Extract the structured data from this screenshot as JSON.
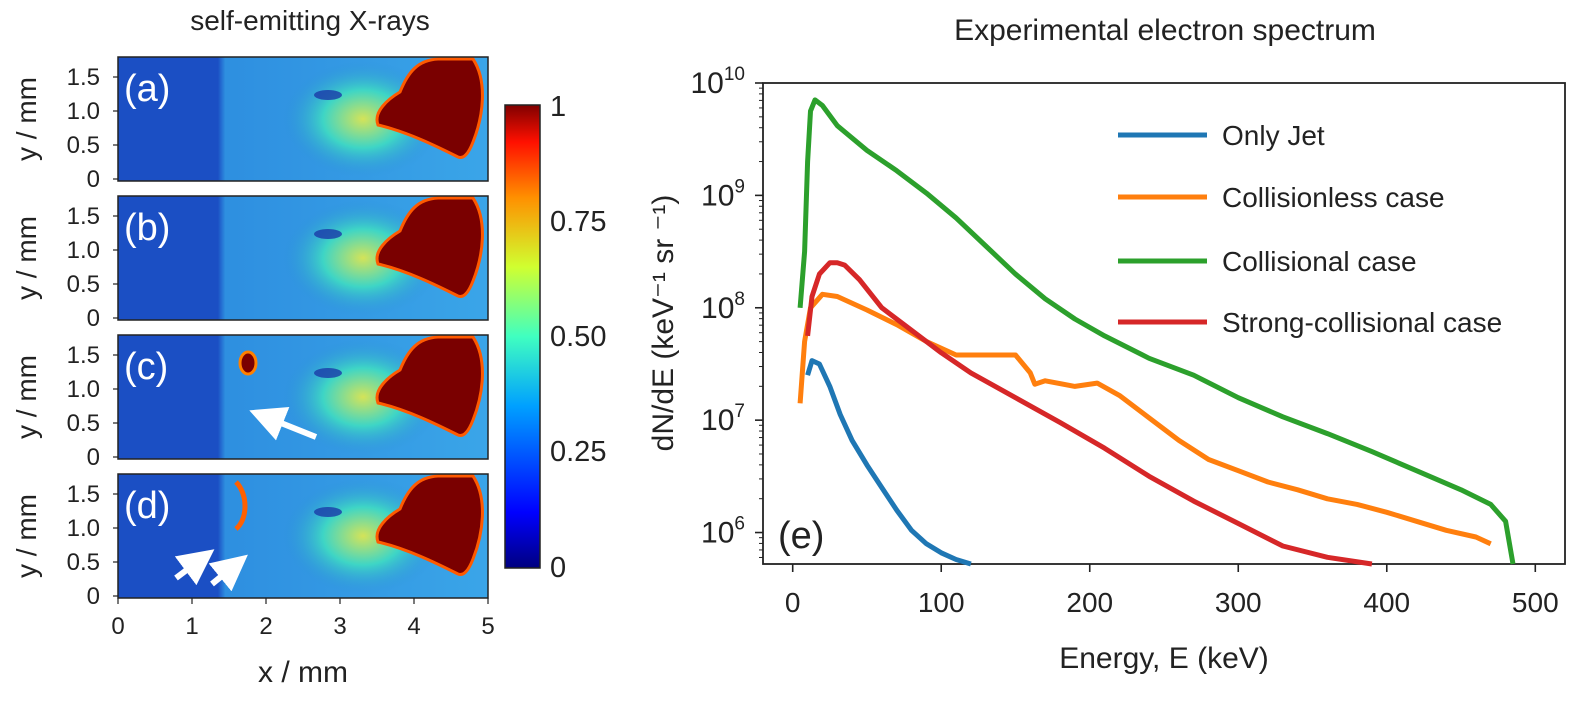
{
  "left_figure": {
    "title": "self-emitting X-rays",
    "xlabel": "x / mm",
    "ylabel": "y / mm",
    "x_ticks": [
      "0",
      "1",
      "2",
      "3",
      "4",
      "5"
    ],
    "y_ticks": [
      "0",
      "0.5",
      "1.0",
      "1.5"
    ],
    "panels": [
      {
        "label": "(a)"
      },
      {
        "label": "(b)"
      },
      {
        "label": "(c)"
      },
      {
        "label": "(d)"
      }
    ],
    "colorbar": {
      "ticks": [
        "0",
        "0.25",
        "0.50",
        "0.75",
        "1"
      ]
    },
    "colors": {
      "low": "#0a1a8c",
      "bg": "#2a8fd6",
      "mid": "#3fd0e0",
      "hot": "#f0e040",
      "max": "#7a0000"
    }
  },
  "chart_data": {
    "type": "line",
    "title": "Experimental electron spectrum",
    "xlabel": "Energy, E (keV)",
    "ylabel": "dN/dE (keV⁻¹ sr ⁻¹)",
    "panel_label": "(e)",
    "xlim": [
      -20,
      520
    ],
    "ylim_log10": [
      5.72,
      10.0
    ],
    "x_ticks": [
      0,
      100,
      200,
      300,
      400,
      500
    ],
    "y_ticks": [
      {
        "base": "10",
        "exp": "6",
        "log": 6
      },
      {
        "base": "10",
        "exp": "7",
        "log": 7
      },
      {
        "base": "10",
        "exp": "8",
        "log": 8
      },
      {
        "base": "10",
        "exp": "9",
        "log": 9
      },
      {
        "base": "10",
        "exp": "10",
        "log": 10
      }
    ],
    "legend_position": "upper-right",
    "series": [
      {
        "name": "Only Jet",
        "color": "#1f77b4",
        "x": [
          10,
          13,
          18,
          25,
          32,
          40,
          50,
          60,
          70,
          80,
          90,
          100,
          110,
          120
        ],
        "log10_y": [
          7.4,
          7.53,
          7.5,
          7.3,
          7.05,
          6.82,
          6.6,
          6.4,
          6.2,
          6.02,
          5.9,
          5.82,
          5.76,
          5.72
        ]
      },
      {
        "name": "Collisionless case",
        "color": "#ff7f0e",
        "x": [
          5,
          8,
          12,
          20,
          30,
          50,
          70,
          90,
          110,
          130,
          150,
          160,
          163,
          170,
          190,
          205,
          220,
          240,
          260,
          280,
          300,
          320,
          340,
          360,
          380,
          400,
          420,
          440,
          460,
          470
        ],
        "log10_y": [
          7.15,
          7.7,
          8.0,
          8.12,
          8.1,
          7.98,
          7.85,
          7.7,
          7.58,
          7.58,
          7.58,
          7.42,
          7.32,
          7.35,
          7.3,
          7.33,
          7.22,
          7.02,
          6.82,
          6.65,
          6.55,
          6.45,
          6.38,
          6.3,
          6.25,
          6.18,
          6.1,
          6.02,
          5.96,
          5.9
        ]
      },
      {
        "name": "Collisional case",
        "color": "#2ca02c",
        "x": [
          5,
          8,
          10,
          12,
          15,
          20,
          30,
          50,
          70,
          90,
          110,
          130,
          150,
          170,
          190,
          210,
          240,
          270,
          300,
          330,
          360,
          390,
          420,
          450,
          470,
          480,
          485
        ],
        "log10_y": [
          8.0,
          8.5,
          9.3,
          9.75,
          9.85,
          9.8,
          9.62,
          9.4,
          9.22,
          9.02,
          8.8,
          8.55,
          8.3,
          8.08,
          7.9,
          7.75,
          7.55,
          7.4,
          7.2,
          7.03,
          6.88,
          6.72,
          6.55,
          6.38,
          6.25,
          6.1,
          5.72
        ]
      },
      {
        "name": "Strong-collisional case",
        "color": "#d62728",
        "x": [
          10,
          13,
          18,
          25,
          30,
          35,
          45,
          60,
          80,
          100,
          120,
          150,
          180,
          210,
          240,
          270,
          300,
          330,
          360,
          390
        ],
        "log10_y": [
          7.75,
          8.1,
          8.3,
          8.4,
          8.4,
          8.38,
          8.25,
          8.0,
          7.8,
          7.6,
          7.42,
          7.2,
          6.98,
          6.75,
          6.5,
          6.28,
          6.08,
          5.88,
          5.78,
          5.72
        ]
      }
    ]
  }
}
